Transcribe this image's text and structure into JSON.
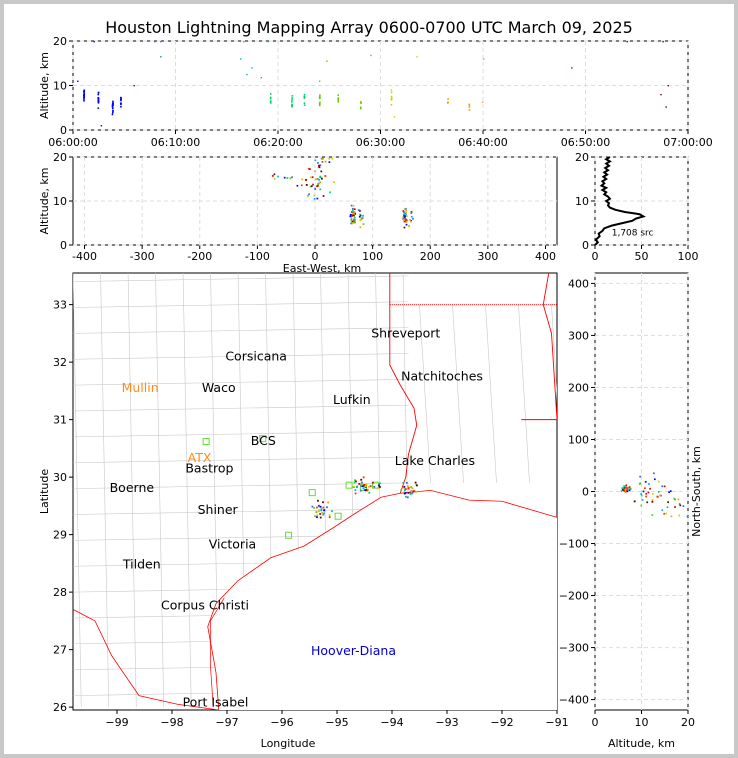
{
  "title": "Houston Lightning Mapping Array 0600-0700 UTC March 09, 2025",
  "colors": {
    "background": "#c8c8c8",
    "state_border": "#ff0000",
    "county_border": "#c8c8c8",
    "orange_label": "#ff8c1a",
    "blue_label": "#0000cc",
    "early_source": "#0000ff",
    "late_source": "#ff0000"
  },
  "chart_data": [
    {
      "id": "time_height",
      "type": "scatter",
      "ylabel": "Altitude, km",
      "ylim": [
        0,
        20
      ],
      "yticks": [
        0,
        10,
        20
      ],
      "xlim_minutes": [
        0,
        60
      ],
      "xticks": [
        "06:00:00",
        "06:10:00",
        "06:20:00",
        "06:30:00",
        "06:40:00",
        "06:50:00",
        "07:00:00"
      ],
      "grid": true,
      "clusters": [
        {
          "t": 1.0,
          "alt": 8.0,
          "n": 16
        },
        {
          "t": 2.4,
          "alt": 6.8,
          "n": 16
        },
        {
          "t": 3.8,
          "alt": 5.5,
          "n": 16
        },
        {
          "t": 4.6,
          "alt": 6.5,
          "n": 10
        },
        {
          "t": 19.2,
          "alt": 7.0,
          "n": 6
        },
        {
          "t": 21.3,
          "alt": 6.6,
          "n": 8
        },
        {
          "t": 22.5,
          "alt": 6.8,
          "n": 8
        },
        {
          "t": 24.0,
          "alt": 6.9,
          "n": 12
        },
        {
          "t": 25.8,
          "alt": 6.5,
          "n": 6
        },
        {
          "t": 28.0,
          "alt": 6.2,
          "n": 4
        },
        {
          "t": 31.0,
          "alt": 7.5,
          "n": 6
        },
        {
          "t": 36.5,
          "alt": 6.3,
          "n": 4
        },
        {
          "t": 38.6,
          "alt": 5.5,
          "n": 4
        }
      ],
      "scattered": [
        {
          "t": 2.0,
          "alt": 20.0
        },
        {
          "t": 7.9,
          "alt": 20.0
        },
        {
          "t": 8.5,
          "alt": 20.0
        },
        {
          "t": 16.6,
          "alt": 20.0
        },
        {
          "t": 19.0,
          "alt": 20.0
        },
        {
          "t": 23.0,
          "alt": 20.0
        },
        {
          "t": 26.3,
          "alt": 20.0
        },
        {
          "t": 35.9,
          "alt": 20.0
        },
        {
          "t": 39.6,
          "alt": 20.0
        },
        {
          "t": 47.0,
          "alt": 20.0
        },
        {
          "t": 54.0,
          "alt": 20.0
        },
        {
          "t": 57.5,
          "alt": 20.0
        },
        {
          "t": 8.5,
          "alt": 16.5
        },
        {
          "t": 16.3,
          "alt": 16.0
        },
        {
          "t": 17.4,
          "alt": 14.0
        },
        {
          "t": 24.7,
          "alt": 15.5
        },
        {
          "t": 29.0,
          "alt": 16.8
        },
        {
          "t": 33.5,
          "alt": 16.5
        },
        {
          "t": 40.0,
          "alt": 16.0
        },
        {
          "t": 48.6,
          "alt": 14.0
        },
        {
          "t": 16.9,
          "alt": 12.5
        },
        {
          "t": 18.3,
          "alt": 11.8
        },
        {
          "t": 24.0,
          "alt": 11.0
        },
        {
          "t": 58.0,
          "alt": 10.0
        },
        {
          "t": 2.7,
          "alt": 1.0
        },
        {
          "t": 0.4,
          "alt": 11.0
        },
        {
          "t": 5.9,
          "alt": 10.0
        },
        {
          "t": 57.3,
          "alt": 8.0
        },
        {
          "t": 39.9,
          "alt": 6.3
        },
        {
          "t": 31.3,
          "alt": 3.0
        },
        {
          "t": 57.8,
          "alt": 5.2
        },
        {
          "t": 31.0,
          "alt": 9.0
        }
      ]
    },
    {
      "id": "east_west_altitude",
      "type": "scatter",
      "xlabel": "East-West, km",
      "ylabel": "Altitude, km",
      "xlim": [
        -420,
        420
      ],
      "ylim": [
        0,
        20
      ],
      "xticks": [
        -400,
        -300,
        -200,
        -100,
        0,
        100,
        200,
        300,
        400
      ],
      "yticks": [
        0,
        10,
        20
      ],
      "grid": true,
      "clusters": [
        {
          "x": 65,
          "alt": 6.8,
          "n": 40
        },
        {
          "x": 78,
          "alt": 6.3,
          "n": 12
        },
        {
          "x": 155,
          "alt": 6.5,
          "n": 30
        },
        {
          "x": 165,
          "alt": 6.0,
          "n": 8
        },
        {
          "x": 0,
          "alt": 14.0,
          "n": 40
        },
        {
          "x": 10,
          "alt": 19.0,
          "n": 16
        },
        {
          "x": -60,
          "alt": 15.0,
          "n": 8
        }
      ]
    },
    {
      "id": "altitude_histogram",
      "type": "line",
      "xlim": [
        0,
        100
      ],
      "ylim": [
        0,
        20
      ],
      "xticks": [
        0,
        50,
        100
      ],
      "yticks": [
        0,
        10,
        20
      ],
      "annotation": "1,708 src",
      "profile": [
        {
          "count": 0,
          "alt": 0.0
        },
        {
          "count": 3,
          "alt": 0.6
        },
        {
          "count": 1,
          "alt": 1.2
        },
        {
          "count": 5,
          "alt": 2.0
        },
        {
          "count": 4,
          "alt": 2.6
        },
        {
          "count": 8,
          "alt": 3.2
        },
        {
          "count": 10,
          "alt": 3.8
        },
        {
          "count": 18,
          "alt": 4.4
        },
        {
          "count": 30,
          "alt": 5.0
        },
        {
          "count": 40,
          "alt": 5.5
        },
        {
          "count": 44,
          "alt": 6.0
        },
        {
          "count": 52,
          "alt": 6.5
        },
        {
          "count": 48,
          "alt": 7.0
        },
        {
          "count": 32,
          "alt": 7.5
        },
        {
          "count": 22,
          "alt": 8.0
        },
        {
          "count": 16,
          "alt": 8.5
        },
        {
          "count": 14,
          "alt": 9.0
        },
        {
          "count": 15,
          "alt": 9.5
        },
        {
          "count": 12,
          "alt": 10.0
        },
        {
          "count": 16,
          "alt": 10.5
        },
        {
          "count": 14,
          "alt": 11.0
        },
        {
          "count": 10,
          "alt": 11.5
        },
        {
          "count": 12,
          "alt": 12.0
        },
        {
          "count": 8,
          "alt": 12.5
        },
        {
          "count": 12,
          "alt": 13.0
        },
        {
          "count": 7,
          "alt": 13.5
        },
        {
          "count": 10,
          "alt": 14.0
        },
        {
          "count": 8,
          "alt": 14.5
        },
        {
          "count": 12,
          "alt": 15.0
        },
        {
          "count": 9,
          "alt": 15.5
        },
        {
          "count": 13,
          "alt": 16.0
        },
        {
          "count": 10,
          "alt": 16.5
        },
        {
          "count": 14,
          "alt": 17.0
        },
        {
          "count": 11,
          "alt": 17.5
        },
        {
          "count": 15,
          "alt": 18.0
        },
        {
          "count": 12,
          "alt": 18.5
        },
        {
          "count": 16,
          "alt": 19.0
        },
        {
          "count": 12,
          "alt": 19.5
        },
        {
          "count": 16,
          "alt": 20.0
        }
      ]
    },
    {
      "id": "plan_view",
      "type": "scatter",
      "xlabel": "Longitude",
      "ylabel": "Latitude",
      "xlim": [
        -99.8,
        -91.0
      ],
      "ylim": [
        25.95,
        33.55
      ],
      "xticks": [
        -99,
        -98,
        -97,
        -96,
        -95,
        -94,
        -93,
        -92,
        -91
      ],
      "yticks": [
        26,
        27,
        28,
        29,
        30,
        31,
        32,
        33
      ],
      "cities": [
        {
          "name": "Shreveport",
          "lon": -93.75,
          "lat": 32.5,
          "color": "black"
        },
        {
          "name": "Corsicana",
          "lon": -96.47,
          "lat": 32.1,
          "color": "black"
        },
        {
          "name": "Natchitoches",
          "lon": -93.09,
          "lat": 31.75,
          "color": "black"
        },
        {
          "name": "Mullin",
          "lon": -98.58,
          "lat": 31.55,
          "color": "orange"
        },
        {
          "name": "Waco",
          "lon": -97.15,
          "lat": 31.55,
          "color": "black"
        },
        {
          "name": "Lufkin",
          "lon": -94.73,
          "lat": 31.34,
          "color": "black"
        },
        {
          "name": "BCS",
          "lon": -96.34,
          "lat": 30.63,
          "color": "black"
        },
        {
          "name": "ATX",
          "lon": -97.5,
          "lat": 30.33,
          "color": "orange"
        },
        {
          "name": "Bastrop",
          "lon": -97.32,
          "lat": 30.15,
          "color": "black"
        },
        {
          "name": "Lake Charles",
          "lon": -93.22,
          "lat": 30.28,
          "color": "black"
        },
        {
          "name": "Boerne",
          "lon": -98.73,
          "lat": 29.81,
          "color": "black"
        },
        {
          "name": "Shiner",
          "lon": -97.17,
          "lat": 29.43,
          "color": "black"
        },
        {
          "name": "Victoria",
          "lon": -96.9,
          "lat": 28.83,
          "color": "black"
        },
        {
          "name": "Tilden",
          "lon": -98.55,
          "lat": 28.48,
          "color": "black"
        },
        {
          "name": "Corpus Christi",
          "lon": -97.4,
          "lat": 27.77,
          "color": "black"
        },
        {
          "name": "Hoover-Diana",
          "lon": -94.7,
          "lat": 26.98,
          "color": "blue"
        },
        {
          "name": "Port Isabel",
          "lon": -97.21,
          "lat": 26.08,
          "color": "black"
        }
      ],
      "stations": [
        {
          "lon": -97.38,
          "lat": 30.62
        },
        {
          "lon": -96.35,
          "lat": 30.67
        },
        {
          "lon": -95.88,
          "lat": 28.99
        },
        {
          "lon": -94.98,
          "lat": 29.32
        },
        {
          "lon": -94.78,
          "lat": 29.86
        },
        {
          "lon": -94.3,
          "lat": 29.86
        },
        {
          "lon": -94.52,
          "lat": 29.82
        },
        {
          "lon": -95.45,
          "lat": 29.73
        }
      ],
      "clusters": [
        {
          "lon": -94.6,
          "lat": 29.85,
          "n": 30
        },
        {
          "lon": -93.72,
          "lat": 29.8,
          "n": 30
        },
        {
          "lon": -95.3,
          "lat": 29.45,
          "n": 30
        },
        {
          "lon": -94.3,
          "lat": 29.88,
          "n": 8
        }
      ]
    },
    {
      "id": "altitude_northsouth",
      "type": "scatter",
      "xlabel": "Altitude, km",
      "ylabel": "North-South, km",
      "xlim": [
        0,
        20
      ],
      "ylim": [
        -420,
        420
      ],
      "xticks": [
        0,
        10,
        20
      ],
      "yticks": [
        -400,
        -300,
        -200,
        -100,
        0,
        100,
        200,
        300,
        400
      ],
      "clusters": [
        {
          "alt": 6.5,
          "ns": 5,
          "n": 40
        },
        {
          "alt": 12.0,
          "ns": 0,
          "n": 30
        },
        {
          "alt": 16.0,
          "ns": -20,
          "n": 20
        }
      ]
    }
  ]
}
